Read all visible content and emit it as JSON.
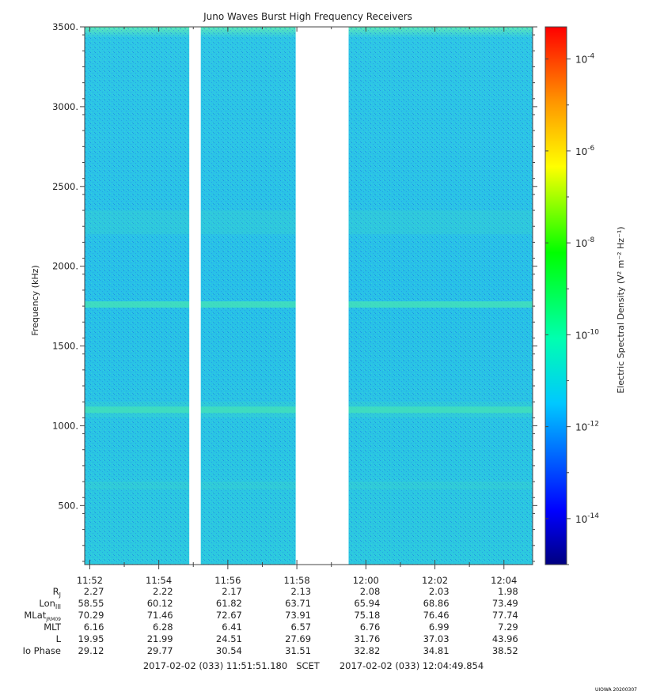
{
  "chart_data": {
    "type": "heatmap",
    "title": "Juno Waves Burst High Frequency Receivers",
    "ylabel": "Frequency (kHz)",
    "ylim": [
      130,
      3500
    ],
    "y_ticks": [
      "500.",
      "1000.",
      "1500.",
      "2000.",
      "2500.",
      "3000.",
      "3500."
    ],
    "y_tick_values": [
      500,
      1000,
      1500,
      2000,
      2500,
      3000,
      3500
    ],
    "xlim": [
      "11:51:51.180",
      "12:04:49.854"
    ],
    "x_ticks": [
      "11:52",
      "11:54",
      "11:56",
      "11:58",
      "12:00",
      "12:02",
      "12:04"
    ],
    "colorbar": {
      "label": "Electric Spectral Density (V² m⁻² Hz⁻¹)",
      "scale": "log",
      "range": [
        "1e-15",
        "5e-4"
      ],
      "ticks": [
        {
          "base": "10",
          "exp": "-4",
          "value": -4
        },
        {
          "base": "10",
          "exp": "-6",
          "value": -6
        },
        {
          "base": "10",
          "exp": "-8",
          "value": -8
        },
        {
          "base": "10",
          "exp": "-10",
          "value": -10
        },
        {
          "base": "10",
          "exp": "-12",
          "value": -12
        },
        {
          "base": "10",
          "exp": "-14",
          "value": -14
        }
      ]
    },
    "data_gaps": [
      {
        "start": "11:54:53",
        "end": "11:55:13"
      },
      {
        "start": "11:57:58",
        "end": "11:59:30"
      }
    ],
    "background_level": "~1e-12",
    "emission_bands_khz": [
      {
        "center": 1760,
        "level": "~1e-11.5"
      },
      {
        "center": 1100,
        "level": "~1e-11.7"
      }
    ],
    "ephemeris": {
      "rows": [
        {
          "label": "R",
          "sub": "J",
          "values": [
            "2.27",
            "2.22",
            "2.17",
            "2.13",
            "2.08",
            "2.03",
            "1.98"
          ]
        },
        {
          "label": "Lon",
          "sub": "III",
          "values": [
            "58.55",
            "60.12",
            "61.82",
            "63.71",
            "65.94",
            "68.86",
            "73.49"
          ]
        },
        {
          "label": "MLat",
          "sub": "JRM09",
          "values": [
            "70.29",
            "71.46",
            "72.67",
            "73.91",
            "75.18",
            "76.46",
            "77.74"
          ]
        },
        {
          "label": "MLT",
          "sub": "",
          "values": [
            "6.16",
            "6.28",
            "6.41",
            "6.57",
            "6.76",
            "6.99",
            "7.29"
          ]
        },
        {
          "label": "L",
          "sub": "",
          "values": [
            "19.95",
            "21.99",
            "24.51",
            "27.69",
            "31.76",
            "37.03",
            "43.96"
          ]
        },
        {
          "label": "Io Phase",
          "sub": "",
          "values": [
            "29.12",
            "29.77",
            "30.54",
            "31.51",
            "32.82",
            "34.81",
            "38.52"
          ]
        }
      ]
    },
    "footer": {
      "start": "2017-02-02 (033) 11:51:51.180",
      "scet": "SCET",
      "end": "2017-02-02 (033) 12:04:49.854"
    },
    "credit": "UIOWA 20200307"
  }
}
